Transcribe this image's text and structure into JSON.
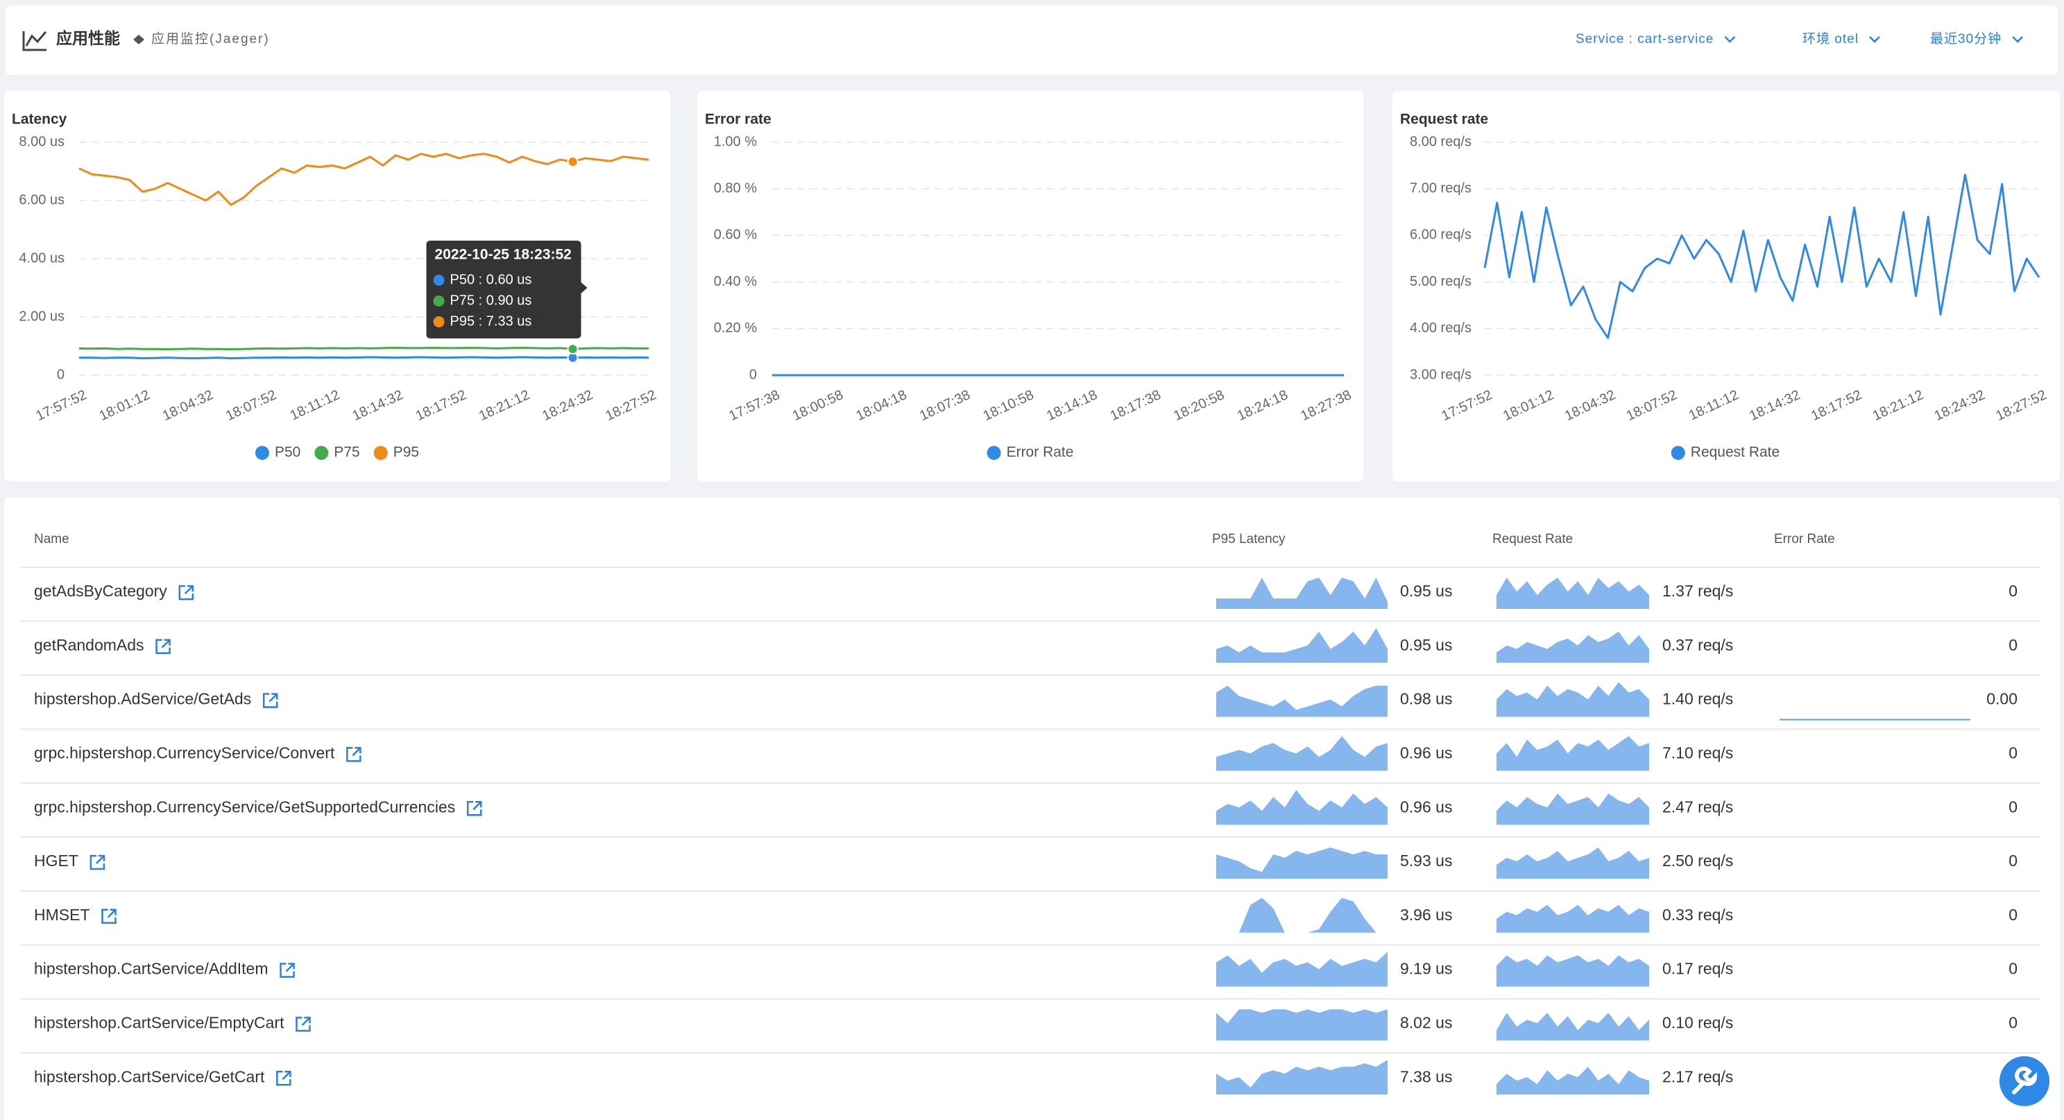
{
  "header": {
    "title": "应用性能",
    "subtitle": "应用监控(Jaeger)",
    "filters": [
      "Service : cart-service",
      "环境 otel",
      "最近30分钟"
    ]
  },
  "chart_data": [
    {
      "type": "line",
      "title": "Latency",
      "x": [
        "17:57:52",
        null,
        null,
        null,
        null,
        "18:01:12",
        null,
        null,
        null,
        null,
        "18:04:32",
        null,
        null,
        null,
        null,
        "18:07:52",
        null,
        null,
        null,
        null,
        "18:11:12",
        null,
        null,
        null,
        null,
        "18:14:32",
        null,
        null,
        null,
        null,
        "18:17:52",
        null,
        null,
        null,
        null,
        "18:21:12",
        null,
        null,
        null,
        null,
        "18:24:32",
        null,
        null,
        null,
        null,
        "18:27:52"
      ],
      "ylim": [
        0,
        8
      ],
      "yticks": [
        0,
        {
          "value": 2,
          "label": "2.00 us"
        },
        {
          "value": 4,
          "label": "4.00 us"
        },
        {
          "value": 6,
          "label": "6.00 us"
        },
        {
          "value": 8,
          "label": "8.00 us"
        }
      ],
      "grid": true,
      "legend": "bottom",
      "series": [
        {
          "name": "P50",
          "color": "#2f8ae6",
          "values": [
            0.6,
            0.6,
            0.59,
            0.6,
            0.6,
            0.58,
            0.59,
            0.6,
            0.59,
            0.58,
            0.59,
            0.6,
            0.58,
            0.59,
            0.6,
            0.6,
            0.61,
            0.6,
            0.61,
            0.6,
            0.61,
            0.6,
            0.61,
            0.62,
            0.61,
            0.6,
            0.61,
            0.62,
            0.61,
            0.6,
            0.61,
            0.62,
            0.61,
            0.6,
            0.61,
            0.62,
            0.61,
            0.6,
            0.61,
            0.6,
            0.61,
            0.6,
            0.61,
            0.6,
            0.61,
            0.6
          ]
        },
        {
          "name": "P75",
          "color": "#43ac4a",
          "values": [
            0.92,
            0.91,
            0.92,
            0.9,
            0.91,
            0.9,
            0.9,
            0.89,
            0.9,
            0.91,
            0.9,
            0.9,
            0.89,
            0.9,
            0.91,
            0.92,
            0.91,
            0.92,
            0.93,
            0.92,
            0.93,
            0.92,
            0.93,
            0.92,
            0.93,
            0.94,
            0.93,
            0.93,
            0.94,
            0.93,
            0.93,
            0.94,
            0.93,
            0.92,
            0.93,
            0.94,
            0.93,
            0.92,
            0.93,
            0.9,
            0.92,
            0.93,
            0.92,
            0.93,
            0.92,
            0.92
          ]
        },
        {
          "name": "P95",
          "color": "#f08a17",
          "values": [
            7.1,
            6.9,
            6.85,
            6.8,
            6.7,
            6.3,
            6.4,
            6.6,
            6.4,
            6.2,
            6.0,
            6.3,
            5.85,
            6.1,
            6.5,
            6.8,
            7.1,
            6.95,
            7.2,
            7.15,
            7.2,
            7.1,
            7.3,
            7.5,
            7.2,
            7.55,
            7.4,
            7.6,
            7.5,
            7.6,
            7.45,
            7.55,
            7.6,
            7.5,
            7.3,
            7.5,
            7.35,
            7.25,
            7.4,
            7.33,
            7.45,
            7.4,
            7.35,
            7.5,
            7.45,
            7.4
          ]
        }
      ]
    },
    {
      "type": "line",
      "title": "Error rate",
      "x": [
        "17:57:38",
        null,
        null,
        null,
        null,
        "18:00:58",
        null,
        null,
        null,
        null,
        "18:04:18",
        null,
        null,
        null,
        null,
        "18:07:38",
        null,
        null,
        null,
        null,
        "18:10:58",
        null,
        null,
        null,
        null,
        "18:14:18",
        null,
        null,
        null,
        null,
        "18:17:38",
        null,
        null,
        null,
        null,
        "18:20:58",
        null,
        null,
        null,
        null,
        "18:24:18",
        null,
        null,
        null,
        null,
        "18:27:38"
      ],
      "ylim": [
        0,
        1
      ],
      "yticks": [
        0,
        {
          "value": 0.2,
          "label": "0.20 %"
        },
        {
          "value": 0.4,
          "label": "0.40 %"
        },
        {
          "value": 0.6,
          "label": "0.60 %"
        },
        {
          "value": 0.8,
          "label": "0.80 %"
        },
        {
          "value": 1,
          "label": "1.00 %"
        }
      ],
      "grid": true,
      "legend": "bottom",
      "series": [
        {
          "name": "Error Rate",
          "color": "#2f8ae6",
          "values": [
            0,
            0,
            0,
            0,
            0,
            0,
            0,
            0,
            0,
            0,
            0,
            0,
            0,
            0,
            0,
            0,
            0,
            0,
            0,
            0,
            0,
            0,
            0,
            0,
            0,
            0,
            0,
            0,
            0,
            0,
            0,
            0,
            0,
            0,
            0,
            0,
            0,
            0,
            0,
            0,
            0,
            0,
            0,
            0,
            0,
            0
          ]
        }
      ]
    },
    {
      "type": "line",
      "title": "Request rate",
      "x": [
        "17:57:52",
        null,
        null,
        null,
        null,
        "18:01:12",
        null,
        null,
        null,
        null,
        "18:04:32",
        null,
        null,
        null,
        null,
        "18:07:52",
        null,
        null,
        null,
        null,
        "18:11:12",
        null,
        null,
        null,
        null,
        "18:14:32",
        null,
        null,
        null,
        null,
        "18:17:52",
        null,
        null,
        null,
        null,
        "18:21:12",
        null,
        null,
        null,
        null,
        "18:24:32",
        null,
        null,
        null,
        null,
        "18:27:52"
      ],
      "ylim": [
        3,
        8
      ],
      "yticks": [
        {
          "value": 3,
          "label": "3.00 req/s"
        },
        {
          "value": 4,
          "label": "4.00 req/s"
        },
        {
          "value": 5,
          "label": "5.00 req/s"
        },
        {
          "value": 6,
          "label": "6.00 req/s"
        },
        {
          "value": 7,
          "label": "7.00 req/s"
        },
        {
          "value": 8,
          "label": "8.00 req/s"
        }
      ],
      "grid": true,
      "legend": "bottom",
      "series": [
        {
          "name": "Request Rate",
          "color": "#2f8ae6",
          "values": [
            5.3,
            6.7,
            5.1,
            6.5,
            5.0,
            6.6,
            5.5,
            4.5,
            4.9,
            4.2,
            3.8,
            5.0,
            4.8,
            5.3,
            5.5,
            5.4,
            6.0,
            5.5,
            5.9,
            5.6,
            5.0,
            6.1,
            4.8,
            5.9,
            5.1,
            4.6,
            5.8,
            4.9,
            6.4,
            5.0,
            6.6,
            4.9,
            5.5,
            5.0,
            6.5,
            4.7,
            6.4,
            4.3,
            5.8,
            7.3,
            5.9,
            5.6,
            7.1,
            4.8,
            5.5,
            5.1
          ]
        }
      ]
    }
  ],
  "tooltip": {
    "title": "2022-10-25 18:23:52",
    "lines": [
      "P50 : 0.60 us",
      "P75 : 0.90 us",
      "P95 : 7.33 us"
    ]
  },
  "table": {
    "columns": [
      "Name",
      "P95 Latency",
      "Request Rate",
      "Error Rate"
    ],
    "spark_ylim": [
      0,
      10
    ],
    "rows": [
      {
        "name": "getAdsByCategory",
        "p95": "0.95 us",
        "request": "1.37 req/s",
        "error": "0",
        "p95_spark": [
          3,
          3,
          3,
          3,
          9,
          3,
          3,
          3,
          8,
          9,
          4,
          9,
          8,
          3,
          9,
          2
        ],
        "request_spark": [
          4,
          9,
          5,
          8,
          4,
          7,
          9,
          5,
          8,
          4,
          9,
          6,
          8,
          5,
          7,
          4
        ]
      },
      {
        "name": "getRandomAds",
        "p95": "0.95 us",
        "request": "0.37 req/s",
        "error": "0",
        "p95_spark": [
          4,
          5,
          3,
          5,
          3,
          3,
          3,
          4,
          5,
          9,
          4,
          6,
          9,
          5,
          10,
          4
        ],
        "request_spark": [
          3,
          5,
          4,
          6,
          5,
          4,
          6,
          7,
          5,
          8,
          6,
          7,
          9,
          5,
          8,
          4
        ]
      },
      {
        "name": "hipstershop.AdService/GetAds",
        "p95": "0.98 us",
        "request": "1.40 req/s",
        "error": "0.00",
        "p95_spark": [
          7,
          9,
          6,
          5,
          4,
          3,
          5,
          2,
          3,
          4,
          5,
          3,
          6,
          8,
          9,
          9
        ],
        "request_spark": [
          5,
          8,
          6,
          7,
          5,
          9,
          6,
          8,
          7,
          5,
          9,
          6,
          10,
          7,
          8,
          5
        ],
        "error_spark": [
          0,
          0,
          0,
          0,
          0,
          0,
          0,
          0,
          0,
          0,
          0,
          0,
          0,
          0,
          0,
          0
        ]
      },
      {
        "name": "grpc.hipstershop.CurrencyService/Convert",
        "p95": "0.96 us",
        "request": "7.10 req/s",
        "error": "0",
        "p95_spark": [
          4,
          5,
          6,
          5,
          7,
          8,
          6,
          5,
          7,
          4,
          6,
          10,
          6,
          4,
          7,
          8
        ],
        "request_spark": [
          5,
          8,
          4,
          9,
          6,
          7,
          9,
          5,
          8,
          7,
          9,
          6,
          8,
          10,
          7,
          8
        ]
      },
      {
        "name": "grpc.hipstershop.CurrencyService/GetSupportedCurrencies",
        "p95": "0.96 us",
        "request": "2.47 req/s",
        "error": "0",
        "p95_spark": [
          4,
          6,
          5,
          7,
          4,
          8,
          5,
          10,
          6,
          4,
          7,
          5,
          9,
          6,
          8,
          5
        ],
        "request_spark": [
          4,
          7,
          5,
          8,
          6,
          5,
          9,
          6,
          7,
          8,
          5,
          9,
          7,
          6,
          8,
          5
        ]
      },
      {
        "name": "HGET",
        "p95": "5.93 us",
        "request": "2.50 req/s",
        "error": "0",
        "p95_spark": [
          7,
          6,
          5,
          3,
          2,
          7,
          6,
          8,
          7,
          8,
          9,
          8,
          7,
          8,
          7,
          7
        ],
        "request_spark": [
          4,
          6,
          5,
          7,
          5,
          6,
          8,
          5,
          6,
          7,
          9,
          5,
          6,
          8,
          5,
          6
        ]
      },
      {
        "name": "HMSET",
        "p95": "3.96 us",
        "request": "0.33 req/s",
        "error": "0",
        "p95_spark": [
          0,
          0,
          0,
          8,
          10,
          7,
          0,
          0,
          0,
          1,
          6,
          10,
          9,
          4,
          0,
          0
        ],
        "request_spark": [
          4,
          6,
          5,
          7,
          6,
          8,
          5,
          6,
          8,
          5,
          7,
          6,
          8,
          5,
          7,
          6
        ]
      },
      {
        "name": "hipstershop.CartService/AddItem",
        "p95": "9.19 us",
        "request": "0.17 req/s",
        "error": "0",
        "p95_spark": [
          7,
          9,
          6,
          8,
          4,
          7,
          8,
          6,
          7,
          5,
          8,
          6,
          7,
          8,
          7,
          10
        ],
        "request_spark": [
          6,
          9,
          7,
          8,
          6,
          9,
          7,
          8,
          9,
          7,
          8,
          6,
          9,
          7,
          8,
          6
        ]
      },
      {
        "name": "hipstershop.CartService/EmptyCart",
        "p95": "8.02 us",
        "request": "0.10 req/s",
        "error": "0",
        "p95_spark": [
          8,
          5,
          9,
          9,
          8,
          9,
          9,
          8,
          9,
          8,
          9,
          9,
          8,
          9,
          8,
          9
        ],
        "request_spark": [
          3,
          8,
          4,
          6,
          5,
          8,
          4,
          7,
          3,
          6,
          5,
          8,
          4,
          7,
          3,
          6
        ]
      },
      {
        "name": "hipstershop.CartService/GetCart",
        "p95": "7.38 us",
        "request": "2.17 req/s",
        "p95_spark": [
          6,
          4,
          5,
          2,
          6,
          7,
          6,
          8,
          7,
          8,
          7,
          8,
          8,
          9,
          8,
          10
        ],
        "request_spark": [
          3,
          6,
          4,
          5,
          3,
          7,
          4,
          6,
          5,
          8,
          4,
          6,
          3,
          7,
          5,
          4
        ]
      }
    ]
  }
}
